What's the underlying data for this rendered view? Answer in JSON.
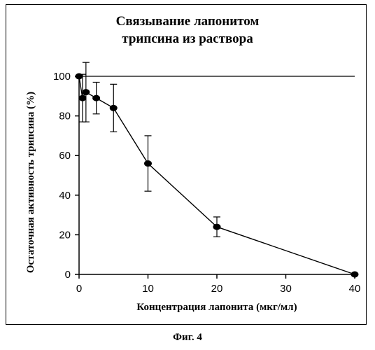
{
  "caption": "Фиг. 4",
  "chart_data": {
    "type": "line",
    "title_lines": [
      "Связывание лапонитом",
      "трипсина из раствора"
    ],
    "xlabel": "Концентрация лапонита (мкг/мл)",
    "ylabel": "Остаточная активность трипсина (%)",
    "x_ticks": [
      0,
      10,
      20,
      30,
      40
    ],
    "y_ticks": [
      0,
      20,
      40,
      60,
      80,
      100
    ],
    "xlim": [
      0,
      40
    ],
    "ylim": [
      0,
      100
    ],
    "grid": false,
    "series": [
      {
        "points": [
          {
            "x": 0,
            "y": 100,
            "err": 0
          },
          {
            "x": 0.5,
            "y": 89,
            "err": 12
          },
          {
            "x": 1,
            "y": 92,
            "err": 15
          },
          {
            "x": 2.5,
            "y": 89,
            "err": 8
          },
          {
            "x": 5,
            "y": 84,
            "err": 12
          },
          {
            "x": 10,
            "y": 56,
            "err": 14
          },
          {
            "x": 20,
            "y": 24,
            "err": 5
          },
          {
            "x": 40,
            "y": 0,
            "err": 0
          }
        ]
      }
    ],
    "reference_line": {
      "y": 100,
      "from_x": 0,
      "to_x": 40
    }
  }
}
